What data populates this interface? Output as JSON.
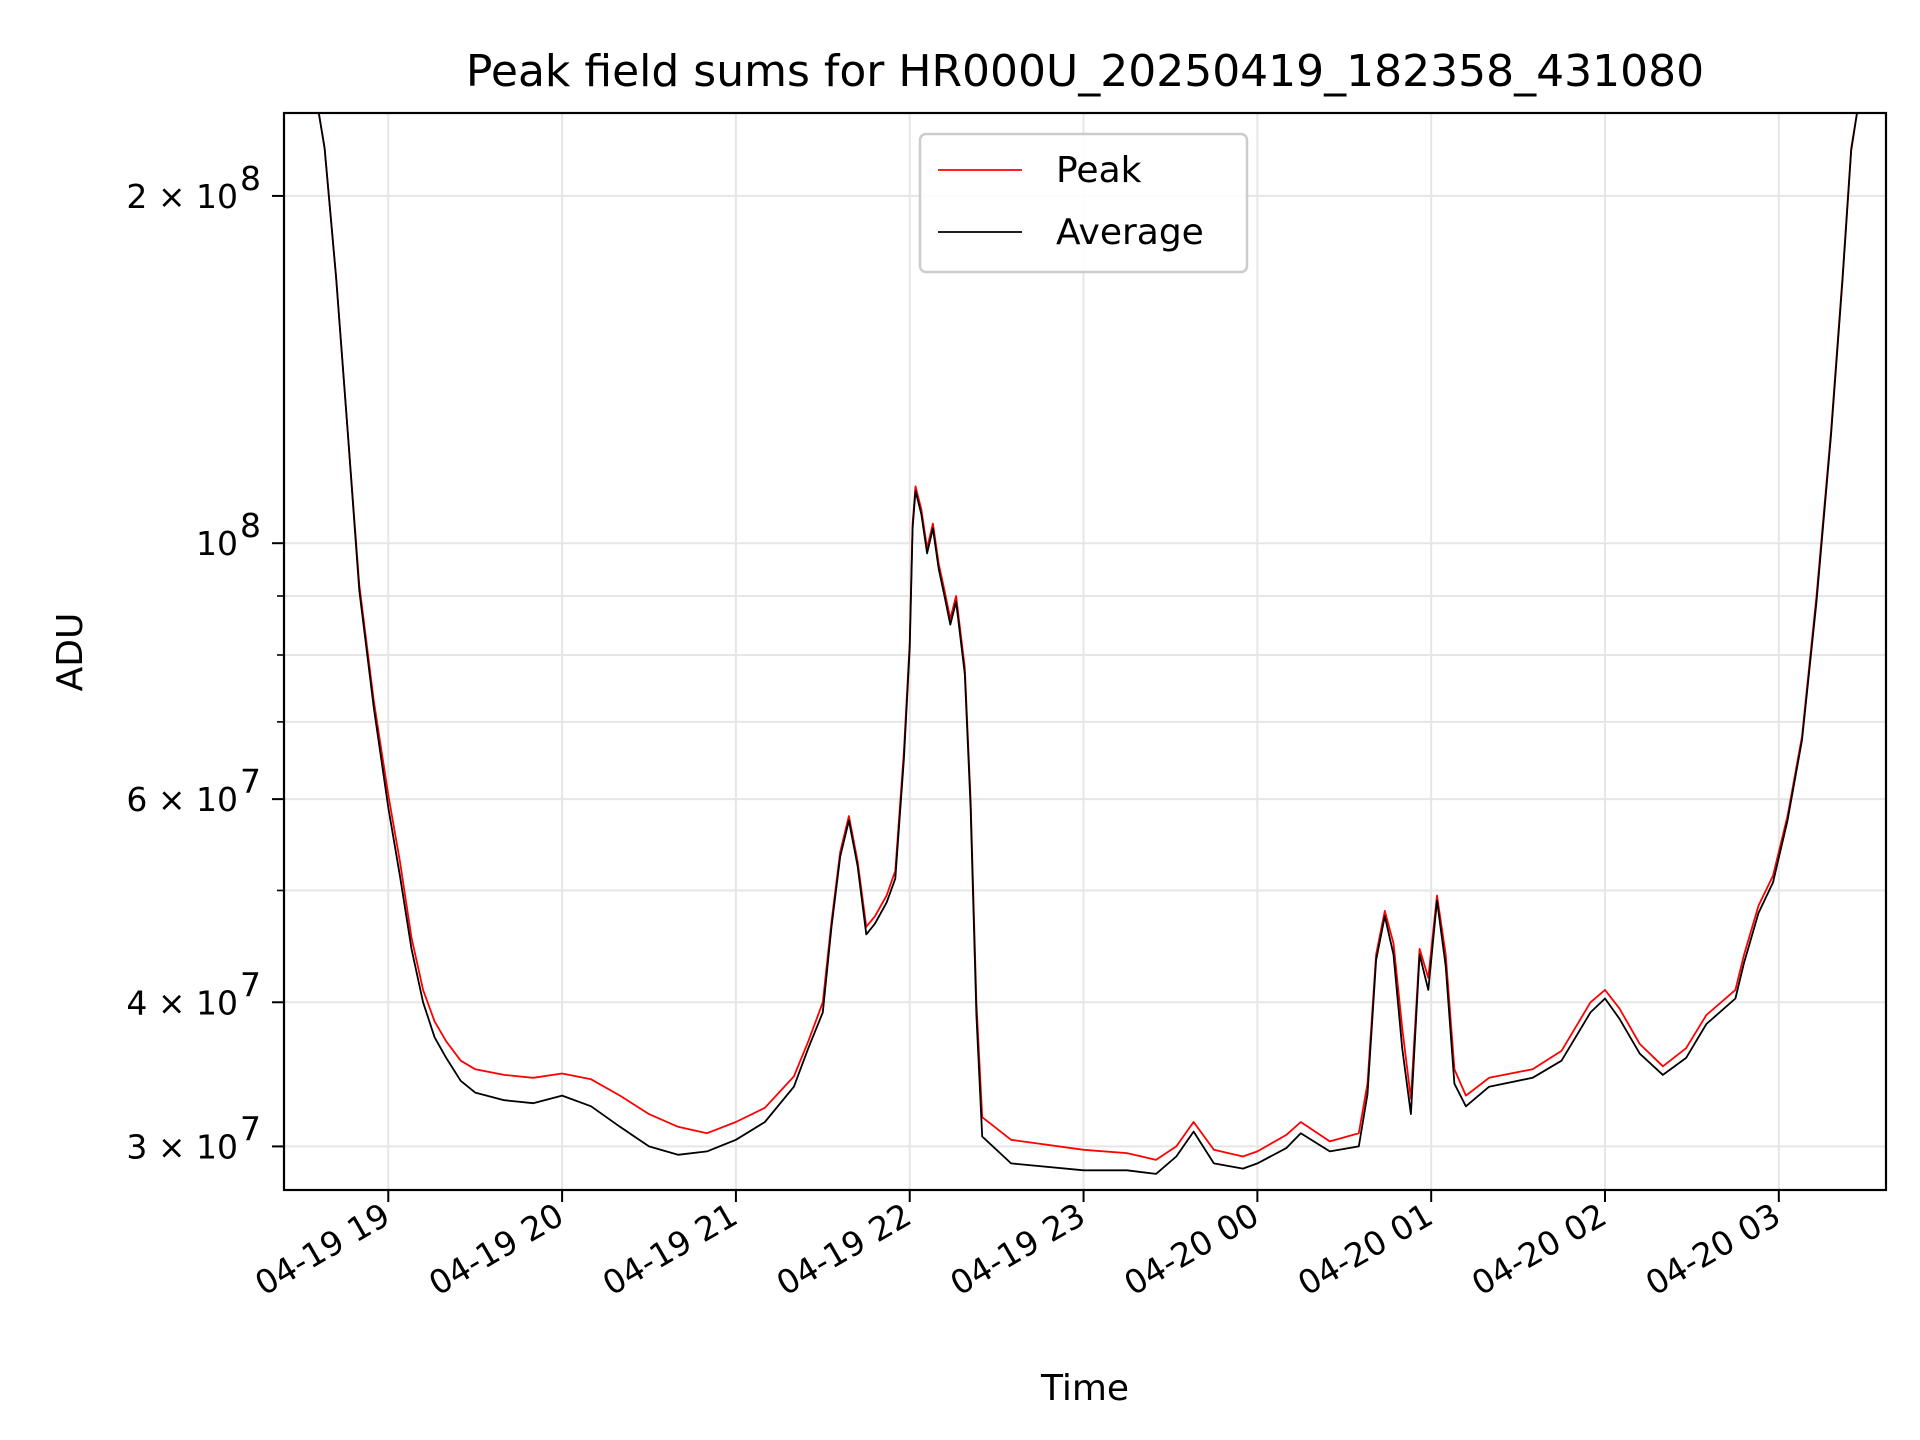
{
  "chart_data": {
    "type": "line",
    "title": "Peak field sums for HR000U_20250419_182358_431080",
    "xlabel": "Time",
    "ylabel": "ADU",
    "yscale": "log",
    "grid": true,
    "legend_position": "top-center",
    "xlim": [
      "2025-04-19 18:24",
      "2025-04-20 03:37"
    ],
    "ylim": [
      27500000,
      236000000
    ],
    "x_ticks": [
      {
        "t": "2025-04-19 19:00",
        "label": "04-19 19"
      },
      {
        "t": "2025-04-19 20:00",
        "label": "04-19 20"
      },
      {
        "t": "2025-04-19 21:00",
        "label": "04-19 21"
      },
      {
        "t": "2025-04-19 22:00",
        "label": "04-19 22"
      },
      {
        "t": "2025-04-19 23:00",
        "label": "04-19 23"
      },
      {
        "t": "2025-04-20 00:00",
        "label": "04-20 00"
      },
      {
        "t": "2025-04-20 01:00",
        "label": "04-20 01"
      },
      {
        "t": "2025-04-20 02:00",
        "label": "04-20 02"
      },
      {
        "t": "2025-04-20 03:00",
        "label": "04-20 03"
      }
    ],
    "y_ticks": [
      {
        "value": 30000000,
        "base": "3 × 10",
        "exp": "7"
      },
      {
        "value": 40000000,
        "base": "4 × 10",
        "exp": "7"
      },
      {
        "value": 60000000,
        "base": "6 × 10",
        "exp": "7"
      },
      {
        "value": 100000000,
        "base": "10",
        "exp": "8"
      },
      {
        "value": 200000000,
        "base": "2 × 10",
        "exp": "8"
      }
    ],
    "y_minor_ticks": [
      50000000,
      70000000,
      80000000,
      90000000
    ],
    "series": [
      {
        "name": "Peak",
        "color": "#ff0000",
        "points": [
          [
            "2025-04-19 18:36",
            236000000
          ],
          [
            "2025-04-19 18:38",
            220000000
          ],
          [
            "2025-04-19 18:42",
            170000000
          ],
          [
            "2025-04-19 18:46",
            125000000
          ],
          [
            "2025-04-19 18:50",
            92000000
          ],
          [
            "2025-04-19 18:55",
            73000000
          ],
          [
            "2025-04-19 19:00",
            60500000
          ],
          [
            "2025-04-19 19:04",
            53000000
          ],
          [
            "2025-04-19 19:08",
            45500000
          ],
          [
            "2025-04-19 19:12",
            41000000
          ],
          [
            "2025-04-19 19:16",
            38500000
          ],
          [
            "2025-04-19 19:20",
            37000000
          ],
          [
            "2025-04-19 19:25",
            35600000
          ],
          [
            "2025-04-19 19:30",
            35000000
          ],
          [
            "2025-04-19 19:40",
            34600000
          ],
          [
            "2025-04-19 19:50",
            34400000
          ],
          [
            "2025-04-19 20:00",
            34700000
          ],
          [
            "2025-04-19 20:10",
            34300000
          ],
          [
            "2025-04-19 20:20",
            33200000
          ],
          [
            "2025-04-19 20:30",
            32000000
          ],
          [
            "2025-04-19 20:40",
            31200000
          ],
          [
            "2025-04-19 20:50",
            30800000
          ],
          [
            "2025-04-19 21:00",
            31500000
          ],
          [
            "2025-04-19 21:10",
            32400000
          ],
          [
            "2025-04-19 21:20",
            34500000
          ],
          [
            "2025-04-19 21:25",
            37000000
          ],
          [
            "2025-04-19 21:30",
            40000000
          ],
          [
            "2025-04-19 21:33",
            47000000
          ],
          [
            "2025-04-19 21:36",
            54000000
          ],
          [
            "2025-04-19 21:39",
            58000000
          ],
          [
            "2025-04-19 21:42",
            53000000
          ],
          [
            "2025-04-19 21:45",
            46500000
          ],
          [
            "2025-04-19 21:48",
            47500000
          ],
          [
            "2025-04-19 21:52",
            49500000
          ],
          [
            "2025-04-19 21:55",
            52000000
          ],
          [
            "2025-04-19 21:58",
            66000000
          ],
          [
            "2025-04-19 22:00",
            82000000
          ],
          [
            "2025-04-19 22:01",
            104000000
          ],
          [
            "2025-04-19 22:02",
            112000000
          ],
          [
            "2025-04-19 22:04",
            107000000
          ],
          [
            "2025-04-19 22:06",
            99000000
          ],
          [
            "2025-04-19 22:08",
            104000000
          ],
          [
            "2025-04-19 22:10",
            96000000
          ],
          [
            "2025-04-19 22:12",
            91000000
          ],
          [
            "2025-04-19 22:14",
            86000000
          ],
          [
            "2025-04-19 22:16",
            90000000
          ],
          [
            "2025-04-19 22:19",
            78000000
          ],
          [
            "2025-04-19 22:21",
            60000000
          ],
          [
            "2025-04-19 22:23",
            40000000
          ],
          [
            "2025-04-19 22:25",
            31800000
          ],
          [
            "2025-04-19 22:35",
            30400000
          ],
          [
            "2025-04-19 23:00",
            29800000
          ],
          [
            "2025-04-19 23:15",
            29600000
          ],
          [
            "2025-04-19 23:25",
            29200000
          ],
          [
            "2025-04-19 23:32",
            30000000
          ],
          [
            "2025-04-19 23:38",
            31500000
          ],
          [
            "2025-04-19 23:45",
            29800000
          ],
          [
            "2025-04-19 23:55",
            29400000
          ],
          [
            "2025-04-20 00:00",
            29700000
          ],
          [
            "2025-04-20 00:10",
            30700000
          ],
          [
            "2025-04-20 00:15",
            31500000
          ],
          [
            "2025-04-20 00:25",
            30300000
          ],
          [
            "2025-04-20 00:35",
            30800000
          ],
          [
            "2025-04-20 00:38",
            34000000
          ],
          [
            "2025-04-20 00:41",
            44000000
          ],
          [
            "2025-04-20 00:44",
            48000000
          ],
          [
            "2025-04-20 00:47",
            45000000
          ],
          [
            "2025-04-20 00:50",
            38000000
          ],
          [
            "2025-04-20 00:53",
            33000000
          ],
          [
            "2025-04-20 00:56",
            44500000
          ],
          [
            "2025-04-20 00:59",
            42000000
          ],
          [
            "2025-04-20 01:02",
            49500000
          ],
          [
            "2025-04-20 01:05",
            44000000
          ],
          [
            "2025-04-20 01:08",
            35000000
          ],
          [
            "2025-04-20 01:12",
            33200000
          ],
          [
            "2025-04-20 01:20",
            34400000
          ],
          [
            "2025-04-20 01:35",
            35000000
          ],
          [
            "2025-04-20 01:45",
            36300000
          ],
          [
            "2025-04-20 01:55",
            40000000
          ],
          [
            "2025-04-20 02:00",
            41000000
          ],
          [
            "2025-04-20 02:05",
            39500000
          ],
          [
            "2025-04-20 02:12",
            36800000
          ],
          [
            "2025-04-20 02:20",
            35200000
          ],
          [
            "2025-04-20 02:28",
            36500000
          ],
          [
            "2025-04-20 02:35",
            39000000
          ],
          [
            "2025-04-20 02:45",
            41000000
          ],
          [
            "2025-04-20 02:48",
            44000000
          ],
          [
            "2025-04-20 02:53",
            48500000
          ],
          [
            "2025-04-20 02:58",
            51500000
          ],
          [
            "2025-04-20 03:03",
            58000000
          ],
          [
            "2025-04-20 03:08",
            68000000
          ],
          [
            "2025-04-20 03:13",
            90000000
          ],
          [
            "2025-04-20 03:18",
            125000000
          ],
          [
            "2025-04-20 03:22",
            170000000
          ],
          [
            "2025-04-20 03:25",
            220000000
          ],
          [
            "2025-04-20 03:27",
            236000000
          ]
        ]
      },
      {
        "name": "Average",
        "color": "#000000",
        "points": [
          [
            "2025-04-19 18:36",
            236000000
          ],
          [
            "2025-04-19 18:38",
            220000000
          ],
          [
            "2025-04-19 18:42",
            170000000
          ],
          [
            "2025-04-19 18:46",
            125000000
          ],
          [
            "2025-04-19 18:50",
            91000000
          ],
          [
            "2025-04-19 18:55",
            72000000
          ],
          [
            "2025-04-19 19:00",
            59000000
          ],
          [
            "2025-04-19 19:04",
            51500000
          ],
          [
            "2025-04-19 19:08",
            44500000
          ],
          [
            "2025-04-19 19:12",
            40000000
          ],
          [
            "2025-04-19 19:16",
            37300000
          ],
          [
            "2025-04-19 19:20",
            35800000
          ],
          [
            "2025-04-19 19:25",
            34200000
          ],
          [
            "2025-04-19 19:30",
            33400000
          ],
          [
            "2025-04-19 19:40",
            32900000
          ],
          [
            "2025-04-19 19:50",
            32700000
          ],
          [
            "2025-04-19 20:00",
            33200000
          ],
          [
            "2025-04-19 20:10",
            32500000
          ],
          [
            "2025-04-19 20:20",
            31200000
          ],
          [
            "2025-04-19 20:30",
            30000000
          ],
          [
            "2025-04-19 20:40",
            29500000
          ],
          [
            "2025-04-19 20:50",
            29700000
          ],
          [
            "2025-04-19 21:00",
            30400000
          ],
          [
            "2025-04-19 21:10",
            31500000
          ],
          [
            "2025-04-19 21:20",
            33800000
          ],
          [
            "2025-04-19 21:25",
            36500000
          ],
          [
            "2025-04-19 21:30",
            39200000
          ],
          [
            "2025-04-19 21:33",
            46500000
          ],
          [
            "2025-04-19 21:36",
            53500000
          ],
          [
            "2025-04-19 21:39",
            57500000
          ],
          [
            "2025-04-19 21:42",
            52500000
          ],
          [
            "2025-04-19 21:45",
            45800000
          ],
          [
            "2025-04-19 21:48",
            46800000
          ],
          [
            "2025-04-19 21:52",
            48800000
          ],
          [
            "2025-04-19 21:55",
            51200000
          ],
          [
            "2025-04-19 21:58",
            65000000
          ],
          [
            "2025-04-19 22:00",
            81000000
          ],
          [
            "2025-04-19 22:01",
            103000000
          ],
          [
            "2025-04-19 22:02",
            111000000
          ],
          [
            "2025-04-19 22:04",
            106000000
          ],
          [
            "2025-04-19 22:06",
            98000000
          ],
          [
            "2025-04-19 22:08",
            103000000
          ],
          [
            "2025-04-19 22:10",
            95000000
          ],
          [
            "2025-04-19 22:12",
            90000000
          ],
          [
            "2025-04-19 22:14",
            85000000
          ],
          [
            "2025-04-19 22:16",
            89000000
          ],
          [
            "2025-04-19 22:19",
            77000000
          ],
          [
            "2025-04-19 22:21",
            59000000
          ],
          [
            "2025-04-19 22:23",
            39000000
          ],
          [
            "2025-04-19 22:25",
            30600000
          ],
          [
            "2025-04-19 22:35",
            29000000
          ],
          [
            "2025-04-19 23:00",
            28600000
          ],
          [
            "2025-04-19 23:15",
            28600000
          ],
          [
            "2025-04-19 23:25",
            28400000
          ],
          [
            "2025-04-19 23:32",
            29400000
          ],
          [
            "2025-04-19 23:38",
            30900000
          ],
          [
            "2025-04-19 23:45",
            29000000
          ],
          [
            "2025-04-19 23:55",
            28700000
          ],
          [
            "2025-04-20 00:00",
            29000000
          ],
          [
            "2025-04-20 00:10",
            29900000
          ],
          [
            "2025-04-20 00:15",
            30800000
          ],
          [
            "2025-04-20 00:25",
            29700000
          ],
          [
            "2025-04-20 00:35",
            30000000
          ],
          [
            "2025-04-20 00:38",
            33300000
          ],
          [
            "2025-04-20 00:41",
            43500000
          ],
          [
            "2025-04-20 00:44",
            47500000
          ],
          [
            "2025-04-20 00:47",
            44000000
          ],
          [
            "2025-04-20 00:50",
            36500000
          ],
          [
            "2025-04-20 00:53",
            32000000
          ],
          [
            "2025-04-20 00:56",
            44000000
          ],
          [
            "2025-04-20 00:59",
            41000000
          ],
          [
            "2025-04-20 01:02",
            49000000
          ],
          [
            "2025-04-20 01:05",
            43000000
          ],
          [
            "2025-04-20 01:08",
            34000000
          ],
          [
            "2025-04-20 01:12",
            32500000
          ],
          [
            "2025-04-20 01:20",
            33800000
          ],
          [
            "2025-04-20 01:35",
            34400000
          ],
          [
            "2025-04-20 01:45",
            35600000
          ],
          [
            "2025-04-20 01:55",
            39200000
          ],
          [
            "2025-04-20 02:00",
            40300000
          ],
          [
            "2025-04-20 02:05",
            38700000
          ],
          [
            "2025-04-20 02:12",
            36100000
          ],
          [
            "2025-04-20 02:20",
            34600000
          ],
          [
            "2025-04-20 02:28",
            35800000
          ],
          [
            "2025-04-20 02:35",
            38300000
          ],
          [
            "2025-04-20 02:45",
            40300000
          ],
          [
            "2025-04-20 02:48",
            43300000
          ],
          [
            "2025-04-20 02:53",
            47800000
          ],
          [
            "2025-04-20 02:58",
            50800000
          ],
          [
            "2025-04-20 03:03",
            57500000
          ],
          [
            "2025-04-20 03:08",
            67500000
          ],
          [
            "2025-04-20 03:13",
            89000000
          ],
          [
            "2025-04-20 03:18",
            124000000
          ],
          [
            "2025-04-20 03:22",
            169000000
          ],
          [
            "2025-04-20 03:25",
            219000000
          ],
          [
            "2025-04-20 03:27",
            236000000
          ]
        ]
      }
    ]
  }
}
